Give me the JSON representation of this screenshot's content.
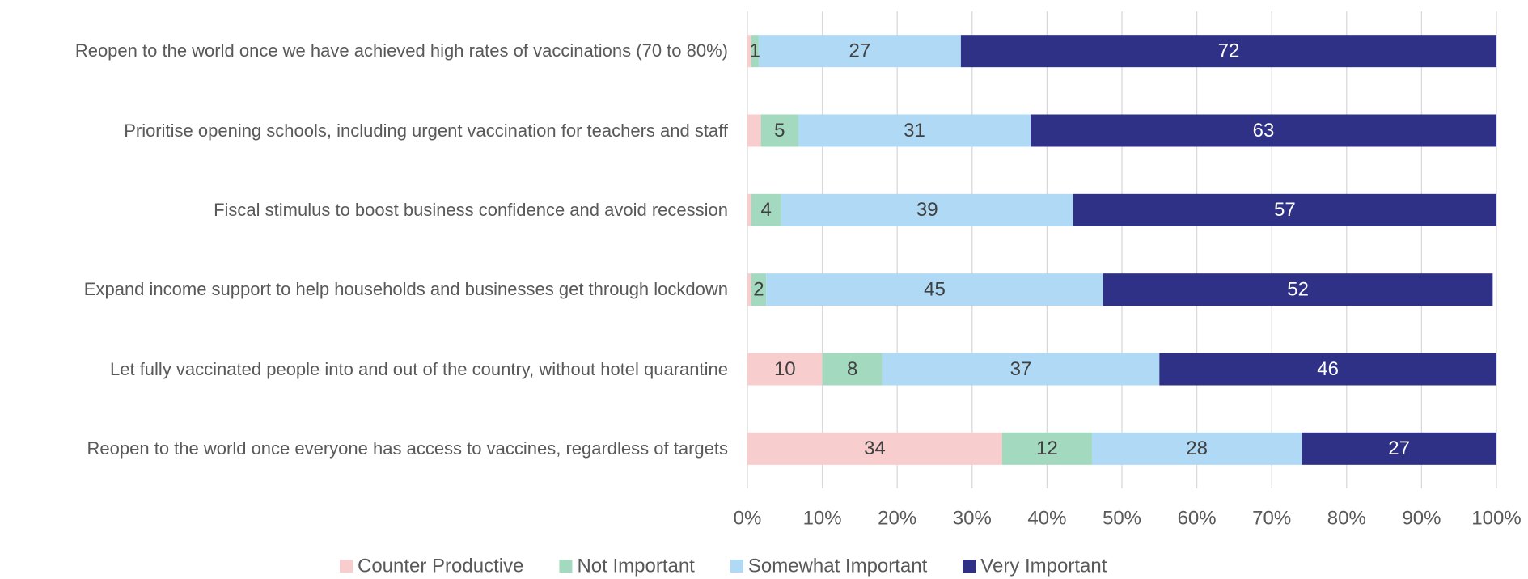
{
  "chart_data": {
    "type": "stacked_bar_horizontal",
    "categories": [
      "Reopen to the world once we have achieved high rates of vaccinations (70 to 80%)",
      "Prioritise opening schools, including urgent vaccination for teachers and staff",
      "Fiscal stimulus to boost business confidence and avoid recession",
      "Expand income support to help households and businesses get through lockdown",
      "Let fully vaccinated people into and out of the country, without hotel quarantine",
      "Reopen to the world once everyone has access to vaccines, regardless of targets"
    ],
    "series": [
      {
        "name": "Counter Productive",
        "color": "#f8cdcd",
        "values": [
          0.5,
          1.8,
          0.5,
          0.5,
          10,
          34
        ],
        "value_labels": [
          null,
          null,
          null,
          null,
          "10",
          "34"
        ]
      },
      {
        "name": "Not Important",
        "color": "#a2d9bf",
        "values": [
          1,
          5,
          4,
          2,
          8,
          12
        ]
      },
      {
        "name": "Somewhat Important",
        "color": "#afd9f5",
        "values": [
          27,
          31,
          39,
          45,
          37,
          28
        ]
      },
      {
        "name": "Very Important",
        "color": "#2e3186",
        "values": [
          72,
          63,
          57,
          52,
          46,
          27
        ]
      }
    ],
    "xlim": [
      0,
      100
    ],
    "xticks": [
      {
        "value": 0,
        "label": "0%"
      },
      {
        "value": 10,
        "label": "10%"
      },
      {
        "value": 20,
        "label": "20%"
      },
      {
        "value": 30,
        "label": "30%"
      },
      {
        "value": 40,
        "label": "40%"
      },
      {
        "value": 50,
        "label": "50%"
      },
      {
        "value": 60,
        "label": "60%"
      },
      {
        "value": 70,
        "label": "70%"
      },
      {
        "value": 80,
        "label": "80%"
      },
      {
        "value": 90,
        "label": "90%"
      },
      {
        "value": 100,
        "label": "100%"
      }
    ],
    "grid": true,
    "legend": "bottom"
  }
}
